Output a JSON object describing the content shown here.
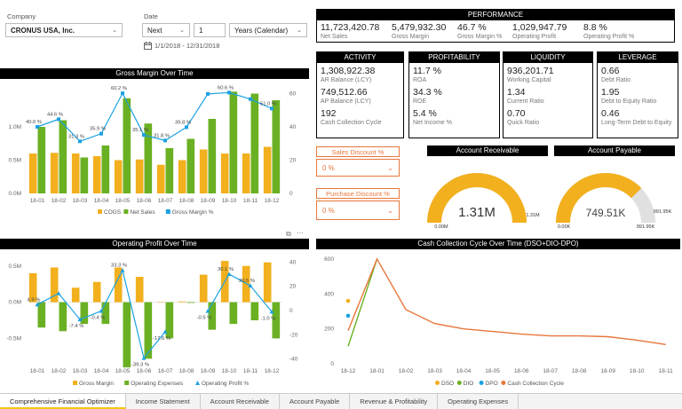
{
  "filters": {
    "company_label": "Company",
    "company_value": "CRONUS USA, Inc.",
    "date_label": "Date",
    "period_value": "Next",
    "period_count": "1",
    "period_unit": "Years (Calendar)",
    "date_range": "1/1/2018 - 12/31/2018"
  },
  "performance": {
    "title": "PERFORMANCE",
    "items": [
      {
        "value": "11,723,420.78",
        "label": "Net Sales"
      },
      {
        "value": "5,479,932.30",
        "label": "Gross Margin"
      },
      {
        "value": "46.7 %",
        "label": "Gross Margin %"
      },
      {
        "value": "1,029,947.79",
        "label": "Operating Profit"
      },
      {
        "value": "8.8 %",
        "label": "Operating Profit %"
      }
    ]
  },
  "activity": {
    "title": "ACTIVITY",
    "items": [
      {
        "value": "1,308,922.38",
        "label": "AR Balance (LCY)"
      },
      {
        "value": "749,512.66",
        "label": "AP Balance (LCY)"
      },
      {
        "value": "192",
        "label": "Cash Collection Cycle"
      }
    ]
  },
  "profitability": {
    "title": "PROFITABILITY",
    "items": [
      {
        "value": "11.7 %",
        "label": "ROA"
      },
      {
        "value": "34.3 %",
        "label": "ROE"
      },
      {
        "value": "5.4 %",
        "label": "Net Income %"
      }
    ]
  },
  "liquidity": {
    "title": "LIQUIDITY",
    "items": [
      {
        "value": "936,201.71",
        "label": "Working Capital"
      },
      {
        "value": "1.34",
        "label": "Current Ratio"
      },
      {
        "value": "0.70",
        "label": "Quick Ratio"
      }
    ]
  },
  "leverage": {
    "title": "LEVERAGE",
    "items": [
      {
        "value": "0.66",
        "label": "Debt Ratio"
      },
      {
        "value": "1.95",
        "label": "Debt to Equity Ratio"
      },
      {
        "value": "0.46",
        "label": "Long-Term Debt to Equity"
      }
    ]
  },
  "discounts": {
    "sales_title": "Sales Discount %",
    "sales_value": "0 %",
    "purchase_title": "Purchase Discount %",
    "purchase_value": "0 %"
  },
  "gauges": {
    "ar_title": "Account Receivable",
    "ar_value": "1.31M",
    "ar_min": "0.00M",
    "ar_max": "1.31M",
    "ar_fraction": 1.0,
    "ap_title": "Account Payable",
    "ap_value": "749.51K",
    "ap_min": "0.00K",
    "ap_max": "991.95K",
    "ap_target": "991.95K",
    "ap_fraction": 0.756
  },
  "colors": {
    "cogs": "#f2b01e",
    "green": "#6ab023",
    "blue": "#1ba1e2",
    "orange": "#e8763a",
    "gauge_bg": "#e0e0e0"
  },
  "tabs": [
    {
      "label": "Comprehensive Financial Optimizer",
      "active": true
    },
    {
      "label": "Income Statement"
    },
    {
      "label": "Account Receivable"
    },
    {
      "label": "Account Payable"
    },
    {
      "label": "Revenue & Profitability"
    },
    {
      "label": "Operating Expenses"
    }
  ],
  "icons": [
    "calendar-icon",
    "chevron-down-icon",
    "expand-icon",
    "more-options-icon"
  ],
  "chart_data": [
    {
      "type": "bar",
      "title": "Gross Margin Over Time",
      "categories": [
        "18-01",
        "18-02",
        "18-03",
        "18-04",
        "18-05",
        "18-06",
        "18-07",
        "18-08",
        "18-09",
        "18-10",
        "18-11",
        "18-12"
      ],
      "y_ticks": [
        "0.0M",
        "0.5M",
        "1.0M"
      ],
      "y2_ticks": [
        "0",
        "20",
        "40",
        "60"
      ],
      "ylim": [
        0,
        1.6
      ],
      "y2lim": [
        0,
        64
      ],
      "series": [
        {
          "name": "COGS",
          "type": "bar",
          "values": [
            0.6,
            0.61,
            0.6,
            0.56,
            0.5,
            0.51,
            0.43,
            0.5,
            0.66,
            0.6,
            0.6,
            0.7
          ]
        },
        {
          "name": "Net Sales",
          "type": "bar",
          "values": [
            1.0,
            1.1,
            0.54,
            0.72,
            1.43,
            1.05,
            0.68,
            0.82,
            1.12,
            1.53,
            1.5,
            1.4
          ]
        },
        {
          "name": "Gross Margin %",
          "type": "line",
          "values": [
            40.0,
            44.6,
            31.3,
            35.9,
            60.2,
            35.1,
            31.8,
            39.8,
            59.8,
            60.6,
            56.7,
            51.0
          ]
        }
      ],
      "data_labels": [
        "40.0 %",
        "44.6 %",
        "31.3 %",
        "35.9 %",
        "60.2 %",
        "35.1 %",
        "31.8 %",
        "39.8 %",
        "",
        "60.6 %",
        "",
        "51.0 %"
      ]
    },
    {
      "type": "bar",
      "title": "Operating Profit Over Time",
      "categories": [
        "18-01",
        "18-02",
        "18-03",
        "18-04",
        "18-05",
        "18-06",
        "18-07",
        "18-08",
        "18-09",
        "18-10",
        "18-11",
        "18-12"
      ],
      "y_ticks": [
        "-0.5M",
        "0.0M",
        "0.5M"
      ],
      "y2_ticks": [
        "-40",
        "-20",
        "0",
        "20",
        "40"
      ],
      "ylim": [
        -0.85,
        0.62
      ],
      "y2lim": [
        -44,
        44
      ],
      "series": [
        {
          "name": "Gross Margin",
          "type": "bar",
          "values": [
            0.4,
            0.48,
            0.2,
            0.28,
            0.48,
            0.35,
            0.0,
            0.01,
            0.38,
            0.57,
            0.5,
            0.55
          ]
        },
        {
          "name": "Operating Expenses",
          "type": "bar",
          "values": [
            0.35,
            0.4,
            0.3,
            0.3,
            0.9,
            0.78,
            0.5,
            0.01,
            0.38,
            0.3,
            0.25,
            0.5
          ]
        },
        {
          "name": "Operating Profit %",
          "type": "line",
          "values": [
            4.9,
            14.1,
            -7.4,
            -0.4,
            33.3,
            -39.3,
            -17.6,
            null,
            -0.5,
            30.1,
            20.5,
            -1.0
          ]
        }
      ],
      "data_labels": [
        "4.9 %",
        "",
        "-7.4 %",
        "-0.4 %",
        "33.3 %",
        "-39.3 %",
        "-17.6 %",
        "",
        "-0.5 %",
        "30.1 %",
        "20.5 %",
        "-1.0 %"
      ]
    },
    {
      "type": "line",
      "title": "Cash Collection Cycle Over Time (DSO+DIO-DPO)",
      "categories": [
        "18-12",
        "18-01",
        "18-02",
        "18-03",
        "18-04",
        "18-05",
        "18-06",
        "18-07",
        "18-08",
        "18-09",
        "18-10",
        "18-11"
      ],
      "y_ticks": [
        "0",
        "200",
        "400",
        "600"
      ],
      "ylim": [
        0,
        620
      ],
      "series": [
        {
          "name": "DSO",
          "values": [
            360,
            null,
            null,
            null,
            null,
            null,
            null,
            null,
            null,
            null,
            null,
            null
          ]
        },
        {
          "name": "DIO",
          "values": [
            100,
            600,
            null,
            null,
            null,
            null,
            null,
            null,
            null,
            null,
            null,
            null
          ]
        },
        {
          "name": "DPO",
          "values": [
            275,
            null,
            null,
            null,
            null,
            null,
            null,
            null,
            null,
            null,
            null,
            null
          ]
        },
        {
          "name": "Cash Collection Cycle",
          "values": [
            190,
            600,
            310,
            230,
            200,
            185,
            170,
            160,
            160,
            155,
            135,
            110
          ]
        }
      ]
    }
  ]
}
